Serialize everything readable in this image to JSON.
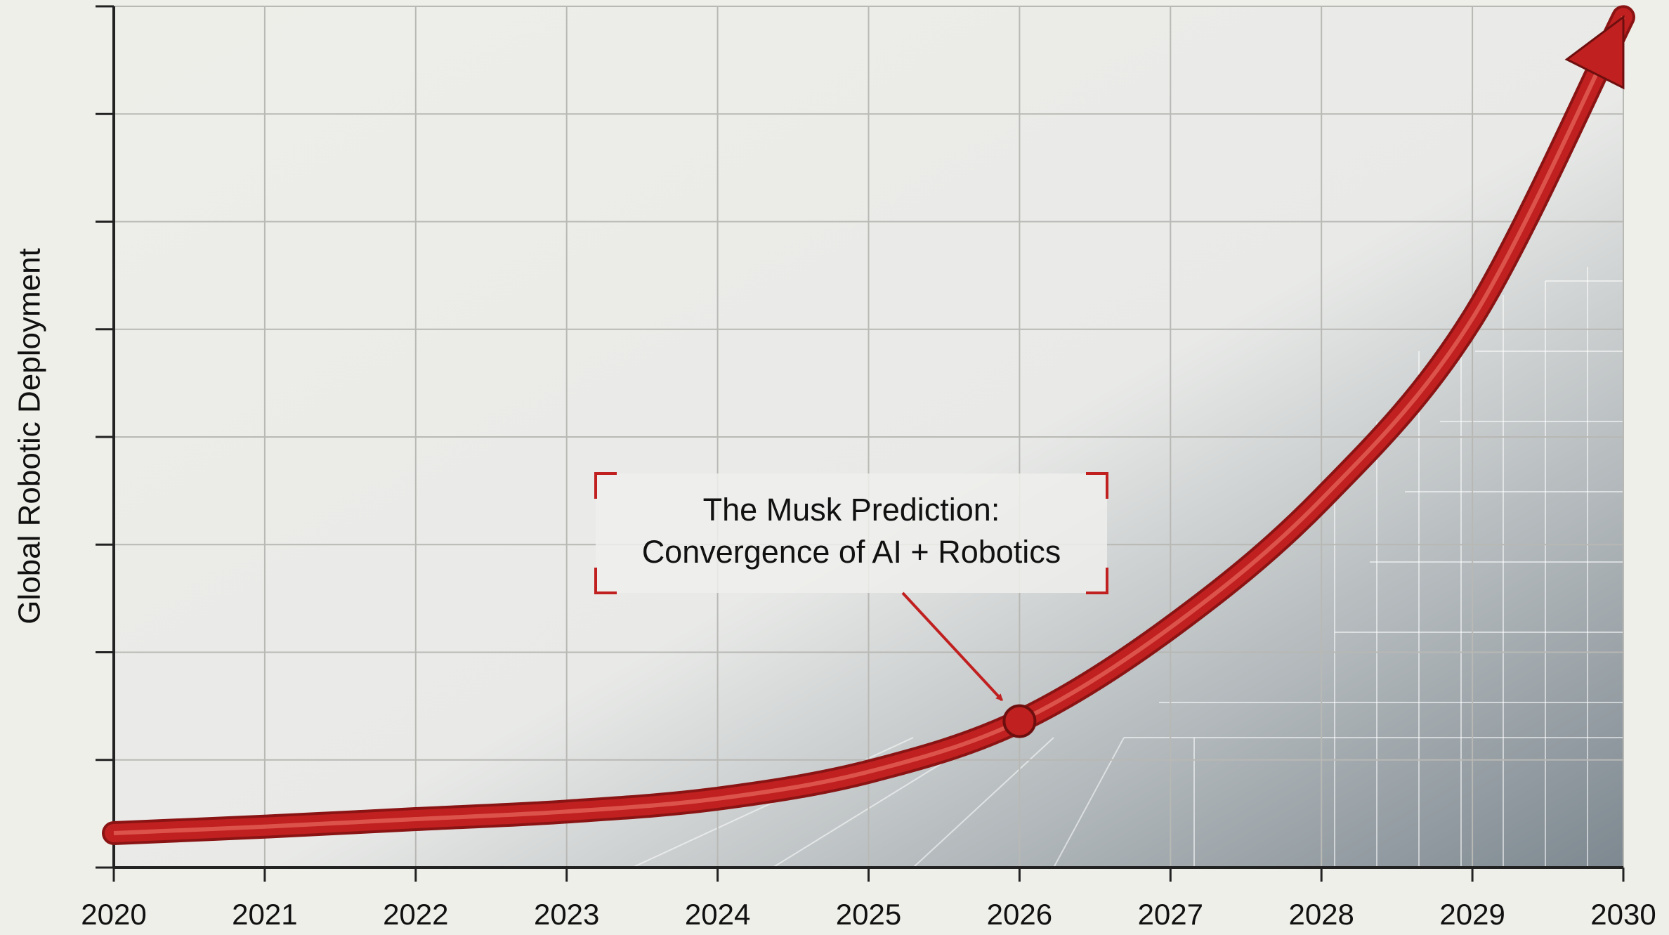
{
  "chart_data": {
    "type": "line",
    "y_label": "Global Robotic Deployment",
    "annotation": [
      "The Musk Prediction:",
      "Convergence of AI + Robotics"
    ],
    "x": [
      2020,
      2021,
      2022,
      2023,
      2024,
      2025,
      2026,
      2027,
      2028,
      2029,
      2030
    ],
    "series": [
      {
        "color": "#c0201f",
        "values": [
          0.32,
          0.38,
          0.45,
          0.52,
          0.64,
          0.89,
          1.36,
          2.23,
          3.42,
          5.1,
          7.9
        ]
      }
    ],
    "xlim": [
      2020,
      2030
    ],
    "xticks": [
      2020,
      2021,
      2022,
      2023,
      2024,
      2025,
      2026,
      2027,
      2028,
      2029,
      2030
    ],
    "ylim": [
      0,
      8
    ],
    "yticks": [
      0,
      1,
      2,
      3,
      4,
      5,
      6,
      7,
      8
    ],
    "grid": true,
    "annotation_x": 2026
  }
}
